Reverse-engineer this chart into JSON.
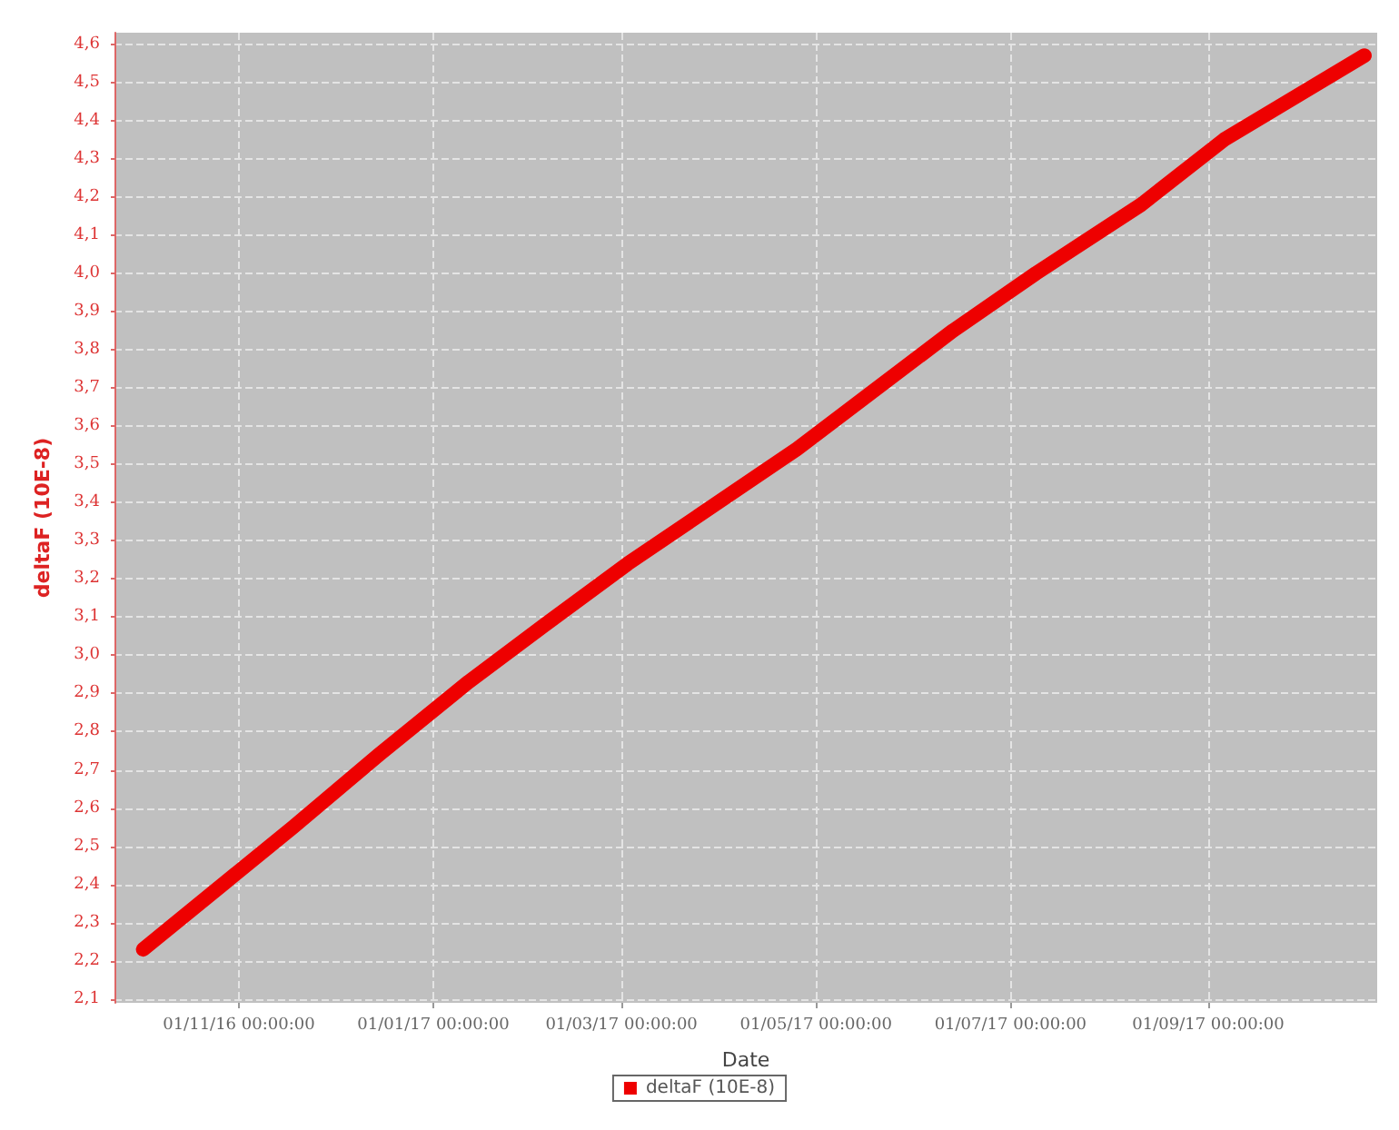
{
  "chart_data": {
    "type": "line",
    "xlabel": "Date",
    "ylabel": "deltaF (10E-8)",
    "x": [
      "2016-10-02",
      "2016-11-18",
      "2016-12-15",
      "2017-01-12",
      "2017-02-05",
      "2017-03-03",
      "2017-04-25",
      "2017-06-13",
      "2017-07-09",
      "2017-08-11",
      "2017-09-06",
      "2017-10-20"
    ],
    "series": [
      {
        "name": "deltaF (10E-8)",
        "color": "#ee0000",
        "values": [
          2.23,
          2.55,
          2.74,
          2.93,
          3.08,
          3.24,
          3.54,
          3.85,
          4.0,
          4.18,
          4.35,
          4.57
        ]
      }
    ],
    "xlim": [
      "2016-09-23",
      "2017-10-24"
    ],
    "xticks": [
      {
        "value": "2016-11-01",
        "label": "01/11/16 00:00:00"
      },
      {
        "value": "2017-01-01",
        "label": "01/01/17 00:00:00"
      },
      {
        "value": "2017-03-01",
        "label": "01/03/17 00:00:00"
      },
      {
        "value": "2017-05-01",
        "label": "01/05/17 00:00:00"
      },
      {
        "value": "2017-07-01",
        "label": "01/07/17 00:00:00"
      },
      {
        "value": "2017-09-01",
        "label": "01/09/17 00:00:00"
      }
    ],
    "ylim": [
      2.09,
      4.63
    ],
    "yticks": [
      {
        "value": 2.1,
        "label": "2,1"
      },
      {
        "value": 2.2,
        "label": "2,2"
      },
      {
        "value": 2.3,
        "label": "2,3"
      },
      {
        "value": 2.4,
        "label": "2,4"
      },
      {
        "value": 2.5,
        "label": "2,5"
      },
      {
        "value": 2.6,
        "label": "2,6"
      },
      {
        "value": 2.7,
        "label": "2,7"
      },
      {
        "value": 2.8,
        "label": "2,8"
      },
      {
        "value": 2.9,
        "label": "2,9"
      },
      {
        "value": 3.0,
        "label": "3,0"
      },
      {
        "value": 3.1,
        "label": "3,1"
      },
      {
        "value": 3.2,
        "label": "3,2"
      },
      {
        "value": 3.3,
        "label": "3,3"
      },
      {
        "value": 3.4,
        "label": "3,4"
      },
      {
        "value": 3.5,
        "label": "3,5"
      },
      {
        "value": 3.6,
        "label": "3,6"
      },
      {
        "value": 3.7,
        "label": "3,7"
      },
      {
        "value": 3.8,
        "label": "3,8"
      },
      {
        "value": 3.9,
        "label": "3,9"
      },
      {
        "value": 4.0,
        "label": "4,0"
      },
      {
        "value": 4.1,
        "label": "4,1"
      },
      {
        "value": 4.2,
        "label": "4,2"
      },
      {
        "value": 4.3,
        "label": "4,3"
      },
      {
        "value": 4.4,
        "label": "4,4"
      },
      {
        "value": 4.5,
        "label": "4,5"
      },
      {
        "value": 4.6,
        "label": "4,6"
      }
    ],
    "grid": true,
    "legend": "bottom",
    "marker": "none",
    "line_style": "solid"
  }
}
